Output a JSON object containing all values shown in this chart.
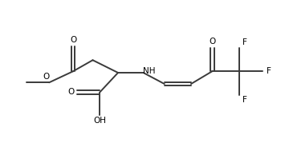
{
  "bg_color": "#ffffff",
  "line_color": "#3a3a3a",
  "text_color": "#000000",
  "linewidth": 1.4,
  "fontsize": 7.5,
  "figsize": [
    3.5,
    1.89
  ],
  "dpi": 100,
  "xlim": [
    0,
    10
  ],
  "ylim": [
    0,
    5.4
  ]
}
